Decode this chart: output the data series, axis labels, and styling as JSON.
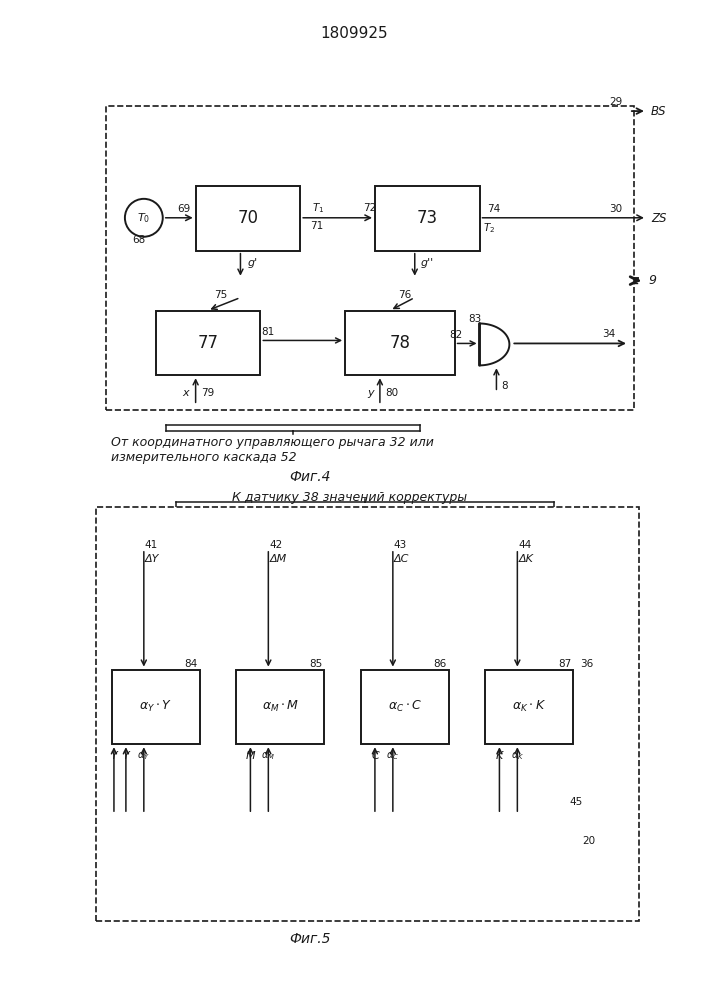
{
  "title": "1809925",
  "fig4_label": "Фиг.4",
  "fig5_label": "Фиг.5",
  "fig4_caption_line1": "От координатного управляющего рычага 32 или",
  "fig4_caption_line2": "измерительного каскада 52",
  "fig5_caption": "К датчику 38 значений корректуры",
  "bg_color": "#ffffff",
  "line_color": "#1a1a1a"
}
